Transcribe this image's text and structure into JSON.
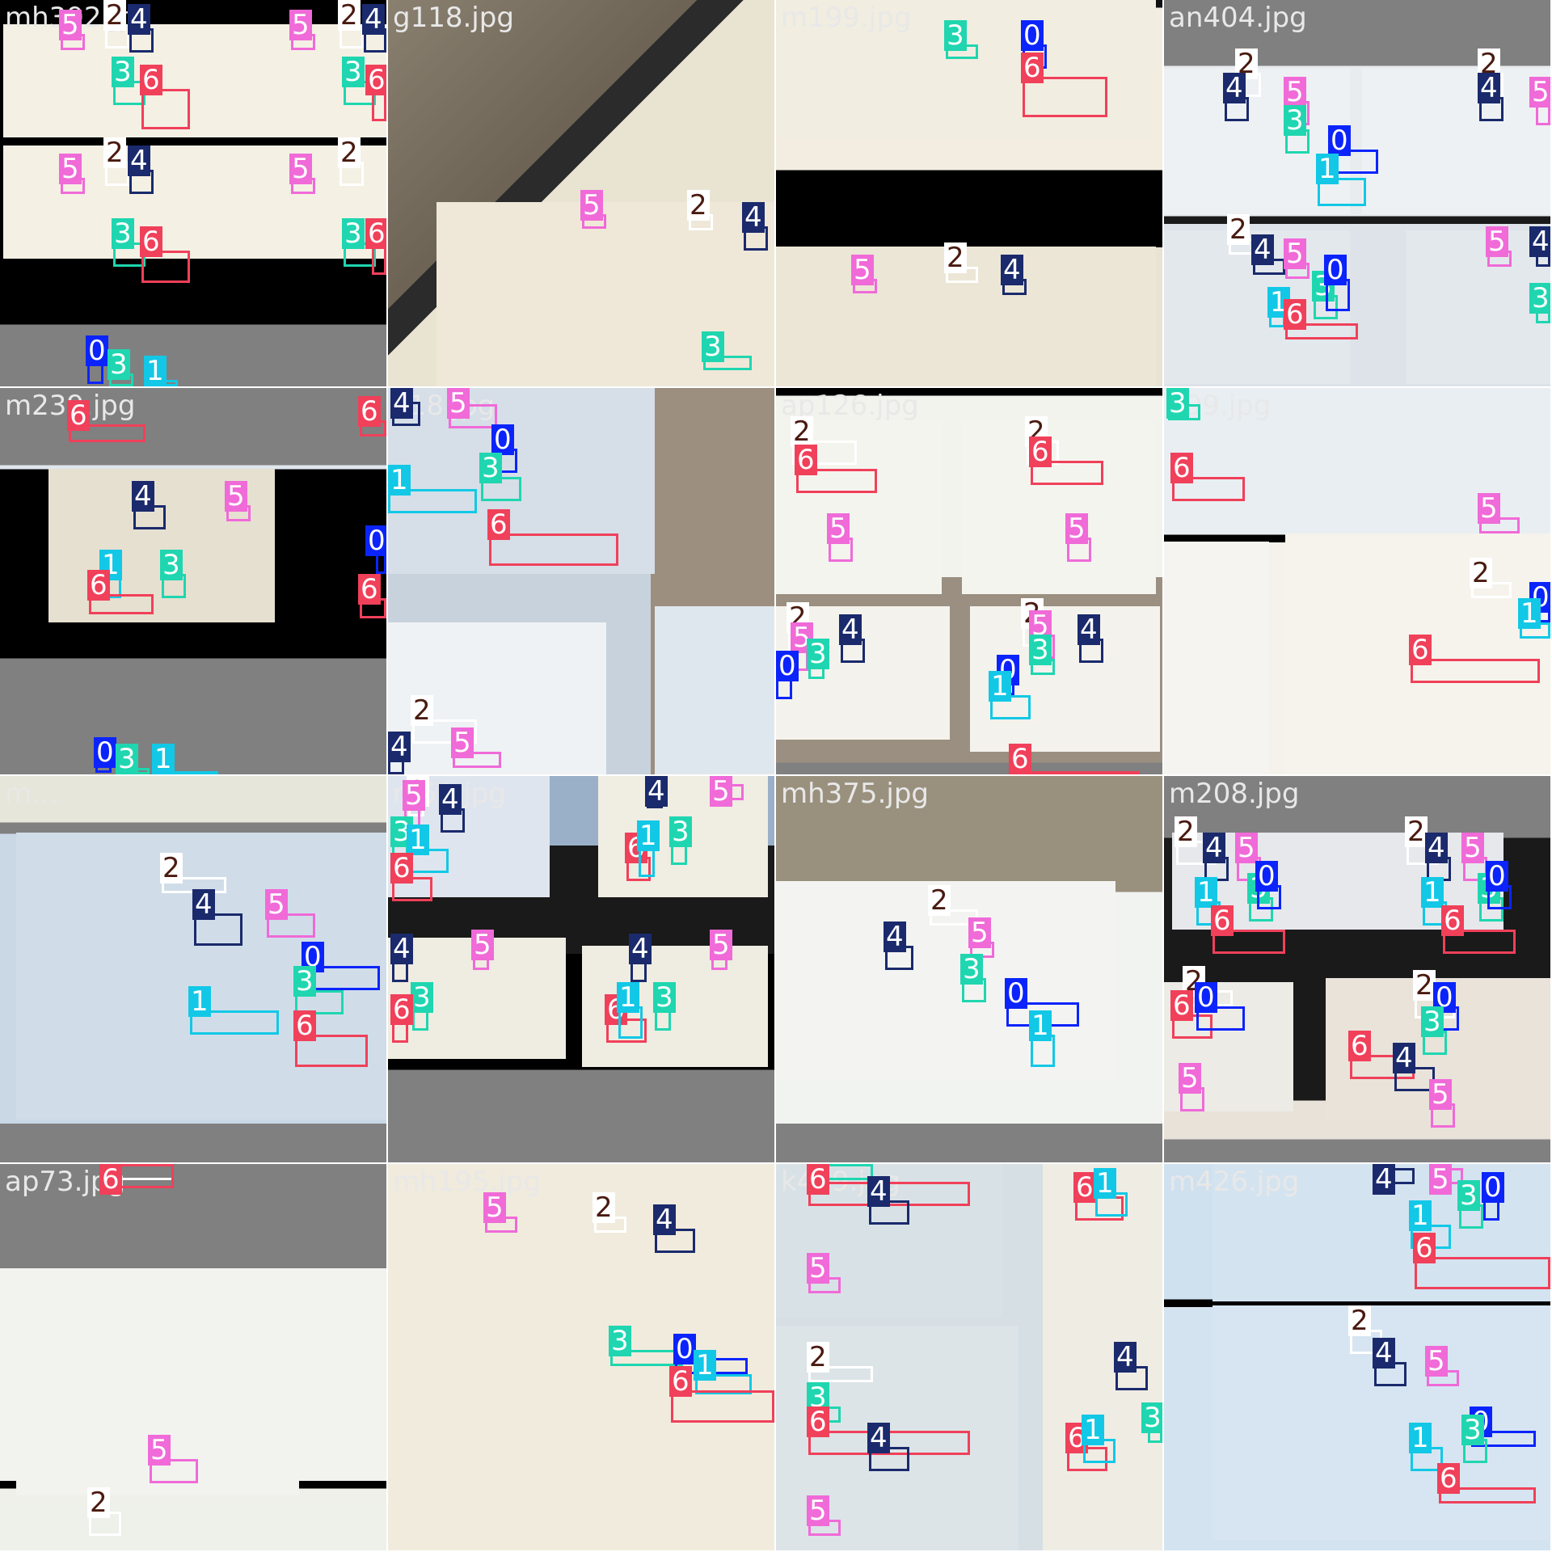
{
  "classes": {
    "0": {
      "label": "0",
      "color": "#0b24fb"
    },
    "1": {
      "label": "1",
      "color": "#12c8e6"
    },
    "2": {
      "label": "2",
      "color": "#ffffff",
      "text_color": "#4a1a10"
    },
    "3": {
      "label": "3",
      "color": "#1fd6b0"
    },
    "4": {
      "label": "4",
      "color": "#1a2a6c"
    },
    "5": {
      "label": "5",
      "color": "#f06ad8"
    },
    "6": {
      "label": "6",
      "color": "#f0405a"
    }
  },
  "tiles": [
    {
      "filename": "mh392.jpg"
    },
    {
      "filename": "g118.jpg"
    },
    {
      "filename": "m199.jpg"
    },
    {
      "filename": "an404.jpg"
    },
    {
      "filename": "m239.jpg"
    },
    {
      "filename": "k18.jpg"
    },
    {
      "filename": "ap126.jpg"
    },
    {
      "filename": "k99.jpg"
    },
    {
      "filename": "m..."
    },
    {
      "filename": "m50.jpg"
    },
    {
      "filename": "mh375.jpg"
    },
    {
      "filename": "m208.jpg"
    },
    {
      "filename": "ap73.jpg"
    },
    {
      "filename": "mh195.jpg"
    },
    {
      "filename": "k429.jpg"
    },
    {
      "filename": "m426.jpg"
    }
  ]
}
